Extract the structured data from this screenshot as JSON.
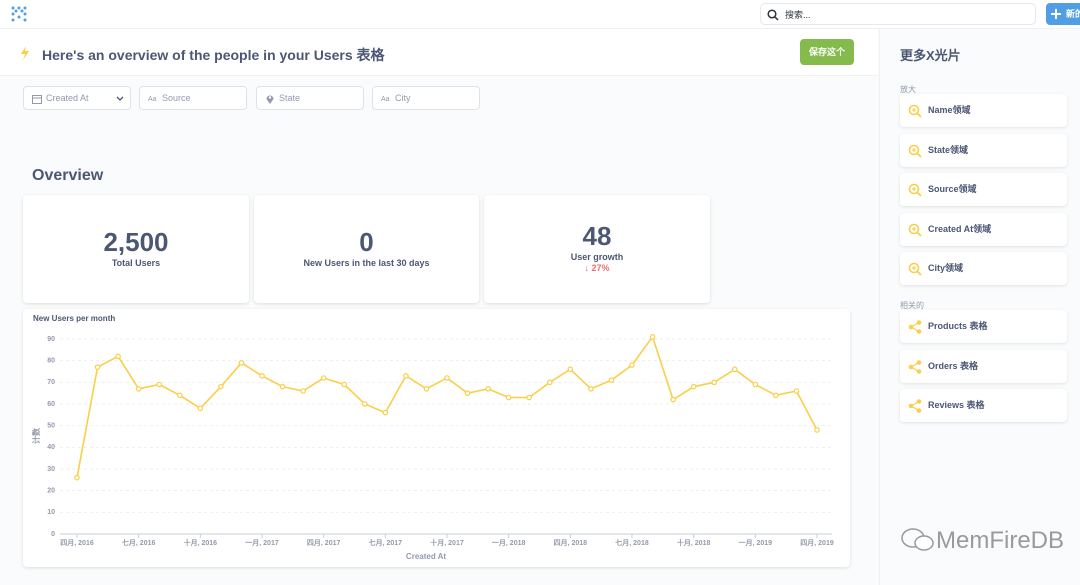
{
  "topbar": {
    "search": "搜索...",
    "new_button": "新的"
  },
  "header": {
    "title": "Here's an overview of the people in your Users 表格",
    "save_button": "保存这个"
  },
  "filters": [
    "Created At",
    "Source",
    "State",
    "City"
  ],
  "section_title": "Overview",
  "cards": [
    {
      "value": "2,500",
      "label": "Total Users"
    },
    {
      "value": "0",
      "label": "New Users in the last 30 days"
    },
    {
      "value": "48",
      "label": "User growth",
      "change": "27%"
    }
  ],
  "chart_data": {
    "type": "line",
    "title": "New Users per month",
    "x_label": "Created At",
    "y_label": "计数",
    "color": "#f9cf48",
    "grid": true,
    "x": [
      "2016-04",
      "2016-05",
      "2016-06",
      "2016-07",
      "2016-08",
      "2016-09",
      "2016-10",
      "2016-11",
      "2016-12",
      "2017-01",
      "2017-02",
      "2017-03",
      "2017-04",
      "2017-05",
      "2017-06",
      "2017-07",
      "2017-08",
      "2017-09",
      "2017-10",
      "2017-11",
      "2017-12",
      "2018-01",
      "2018-02",
      "2018-03",
      "2018-04",
      "2018-05",
      "2018-06",
      "2018-07",
      "2018-08",
      "2018-09",
      "2018-10",
      "2018-11",
      "2018-12",
      "2019-01",
      "2019-02",
      "2019-03",
      "2019-04"
    ],
    "values": [
      26,
      77,
      82,
      67,
      69,
      64,
      58,
      68,
      79,
      73,
      68,
      66,
      72,
      69,
      60,
      56,
      73,
      67,
      72,
      65,
      67,
      63,
      63,
      70,
      76,
      67,
      71,
      78,
      91,
      62,
      68,
      70,
      76,
      69,
      64,
      66,
      48
    ],
    "xlim": [
      "2016-04",
      "2019-04"
    ],
    "xticks": [
      {
        "value": "2016-04",
        "label": "四月, 2016"
      },
      {
        "value": "2016-07",
        "label": "七月, 2016"
      },
      {
        "value": "2016-10",
        "label": "十月, 2016"
      },
      {
        "value": "2017-01",
        "label": "一月, 2017"
      },
      {
        "value": "2017-04",
        "label": "四月, 2017"
      },
      {
        "value": "2017-07",
        "label": "七月, 2017"
      },
      {
        "value": "2017-10",
        "label": "十月, 2017"
      },
      {
        "value": "2018-01",
        "label": "一月, 2018"
      },
      {
        "value": "2018-04",
        "label": "四月, 2018"
      },
      {
        "value": "2018-07",
        "label": "七月, 2018"
      },
      {
        "value": "2018-10",
        "label": "十月, 2018"
      },
      {
        "value": "2019-01",
        "label": "一月, 2019"
      },
      {
        "value": "2019-04",
        "label": "四月, 2019"
      }
    ],
    "ylim": [
      0,
      90
    ],
    "yticks": [
      0,
      10,
      20,
      30,
      40,
      50,
      60,
      70,
      80,
      90
    ]
  },
  "sidebar": {
    "title": "更多X光片",
    "groups": [
      {
        "heading": "放大",
        "items": [
          "Name领域",
          "State领域",
          "Source领域",
          "Created At领域",
          "City领域"
        ]
      },
      {
        "heading": "相关的",
        "items": [
          "Products 表格",
          "Orders 表格",
          "Reviews 表格"
        ]
      }
    ]
  },
  "watermark": "MemFireDB"
}
